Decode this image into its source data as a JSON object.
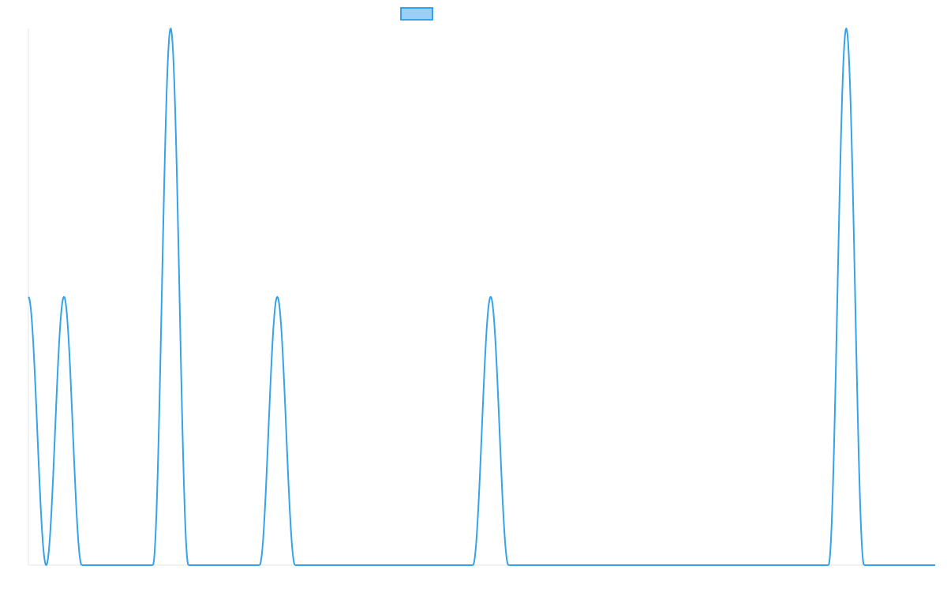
{
  "chart_data": {
    "type": "line",
    "title": "",
    "xlabel": "",
    "ylabel": "",
    "x_axis": {
      "visible": false,
      "range": [
        0,
        51
      ]
    },
    "y_axis": {
      "visible": false,
      "range": [
        0,
        2
      ]
    },
    "grid": false,
    "legend": {
      "placement": "top-center",
      "entries": [
        {
          "label": "",
          "color": "#36a2eb"
        }
      ]
    },
    "series": [
      {
        "color": "#36a2eb",
        "fill_color": "#9ad0f5",
        "peaks": [
          {
            "x": 0,
            "y": 1
          },
          {
            "x": 2,
            "y": 1
          },
          {
            "x": 8,
            "y": 2
          },
          {
            "x": 14,
            "y": 1
          },
          {
            "x": 26,
            "y": 1
          },
          {
            "x": 46,
            "y": 2
          }
        ],
        "troughs": [
          {
            "x": 1,
            "y": 0
          }
        ],
        "baseline_segments": [
          [
            3,
            7
          ],
          [
            9,
            13
          ],
          [
            15,
            25
          ],
          [
            27,
            45
          ],
          [
            47,
            51
          ]
        ]
      }
    ]
  }
}
